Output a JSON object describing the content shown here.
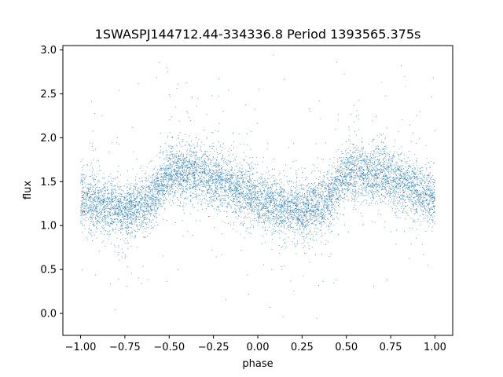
{
  "chart_data": {
    "type": "scatter",
    "title": "1SWASPJ144712.44-334336.8 Period 1393565.375s",
    "xlabel": "phase",
    "ylabel": "flux",
    "xlim": [
      -1.1,
      1.1
    ],
    "ylim": [
      -0.25,
      3.05
    ],
    "x_ticks": [
      -1.0,
      -0.75,
      -0.5,
      -0.25,
      0.0,
      0.25,
      0.5,
      0.75,
      1.0
    ],
    "x_tick_labels": [
      "−1.00",
      "−0.75",
      "−0.50",
      "−0.25",
      "0.00",
      "0.25",
      "0.50",
      "0.75",
      "1.00"
    ],
    "y_ticks": [
      0.0,
      0.5,
      1.0,
      1.5,
      2.0,
      2.5,
      3.0
    ],
    "y_tick_labels": [
      "0.0",
      "0.5",
      "1.0",
      "1.5",
      "2.0",
      "2.5",
      "3.0"
    ],
    "marker_color": "#1f77b4",
    "grid": false,
    "phase_profile": {
      "x": [
        -1.0,
        -0.9,
        -0.75,
        -0.6,
        -0.5,
        -0.3,
        -0.15,
        0.0,
        0.1,
        0.25,
        0.4,
        0.5,
        0.7,
        0.85,
        1.0
      ],
      "y": [
        1.3,
        1.25,
        1.15,
        1.3,
        1.6,
        1.6,
        1.45,
        1.3,
        1.25,
        1.15,
        1.3,
        1.6,
        1.6,
        1.45,
        1.3
      ]
    }
  }
}
